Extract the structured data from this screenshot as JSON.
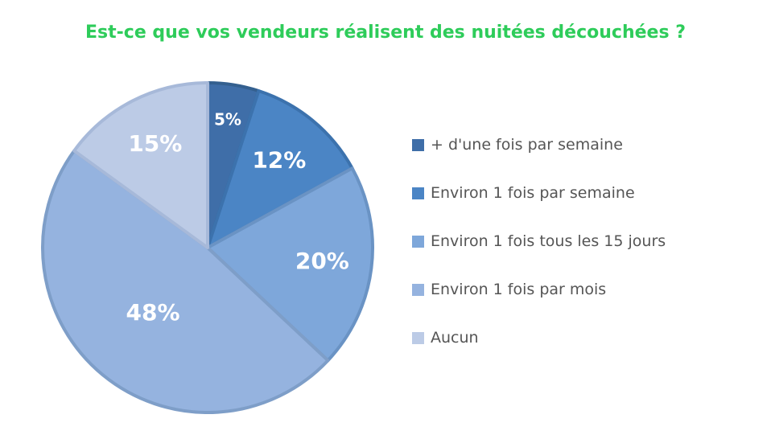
{
  "chart_data": {
    "type": "pie",
    "title": "Est-ce que vos vendeurs réalisent des nuitées découchées ?",
    "legend_position": "right",
    "slices": [
      {
        "label": "+ d'une fois par semaine",
        "value": 5,
        "display": "5%",
        "color": "#3f6ea8",
        "stroke": "#34608f"
      },
      {
        "label": "Environ 1 fois par semaine",
        "value": 12,
        "display": "12%",
        "color": "#4b85c5",
        "stroke": "#3c72ad"
      },
      {
        "label": "Environ 1 fois tous les 15 jours",
        "value": 20,
        "display": "20%",
        "color": "#7ea7da",
        "stroke": "#6a93c4"
      },
      {
        "label": "Environ 1 fois par mois",
        "value": 48,
        "display": "48%",
        "color": "#95b3df",
        "stroke": "#7e9ec8"
      },
      {
        "label": "Aucun",
        "value": 15,
        "display": "15%",
        "color": "#bccbe6",
        "stroke": "#a7b9d9"
      }
    ]
  }
}
